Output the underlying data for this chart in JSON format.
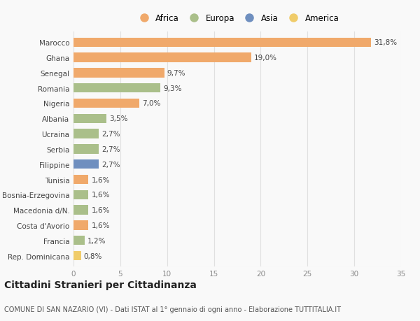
{
  "categories": [
    "Marocco",
    "Ghana",
    "Senegal",
    "Romania",
    "Nigeria",
    "Albania",
    "Ucraina",
    "Serbia",
    "Filippine",
    "Tunisia",
    "Bosnia-Erzegovina",
    "Macedonia d/N.",
    "Costa d'Avorio",
    "Francia",
    "Rep. Dominicana"
  ],
  "values": [
    31.8,
    19.0,
    9.7,
    9.3,
    7.0,
    3.5,
    2.7,
    2.7,
    2.7,
    1.6,
    1.6,
    1.6,
    1.6,
    1.2,
    0.8
  ],
  "labels": [
    "31,8%",
    "19,0%",
    "9,7%",
    "9,3%",
    "7,0%",
    "3,5%",
    "2,7%",
    "2,7%",
    "2,7%",
    "1,6%",
    "1,6%",
    "1,6%",
    "1,6%",
    "1,2%",
    "0,8%"
  ],
  "continent": [
    "Africa",
    "Africa",
    "Africa",
    "Europa",
    "Africa",
    "Europa",
    "Europa",
    "Europa",
    "Asia",
    "Africa",
    "Europa",
    "Europa",
    "Africa",
    "Europa",
    "America"
  ],
  "colors": {
    "Africa": "#F0A96B",
    "Europa": "#AABF8A",
    "Asia": "#6F8FBF",
    "America": "#F0CC6A"
  },
  "legend_order": [
    "Africa",
    "Europa",
    "Asia",
    "America"
  ],
  "xlim": [
    0,
    35
  ],
  "xticks": [
    0,
    5,
    10,
    15,
    20,
    25,
    30,
    35
  ],
  "title": "Cittadini Stranieri per Cittadinanza",
  "subtitle": "COMUNE DI SAN NAZARIO (VI) - Dati ISTAT al 1° gennaio di ogni anno - Elaborazione TUTTITALIA.IT",
  "bg_color": "#f9f9f9",
  "grid_color": "#e0e0e0",
  "bar_height": 0.62,
  "label_fontsize": 7.5,
  "tick_fontsize": 7.5,
  "title_fontsize": 10,
  "subtitle_fontsize": 7.0
}
